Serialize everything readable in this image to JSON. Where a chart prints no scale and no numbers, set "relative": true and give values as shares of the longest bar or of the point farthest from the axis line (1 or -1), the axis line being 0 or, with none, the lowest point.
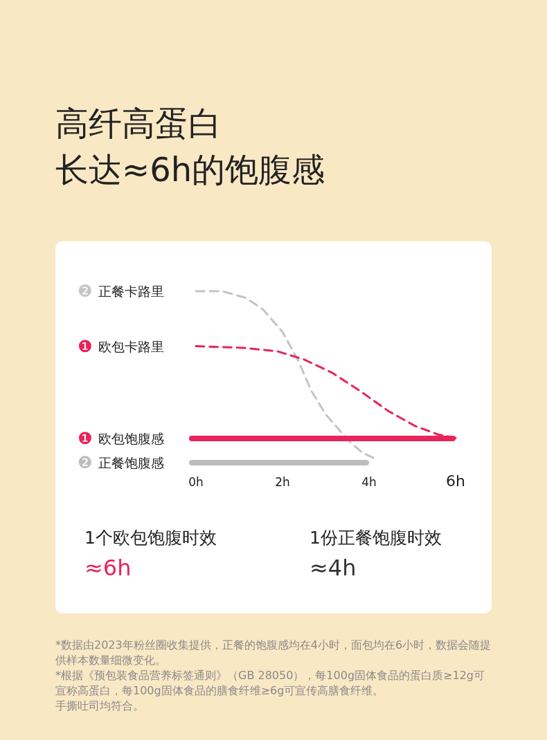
{
  "chart_data": [
    {
      "type": "line",
      "title": "高纤高蛋白",
      "subtitle": "长达≈6h的饱腹感",
      "relative": true,
      "line_style": "dashed",
      "tick_labels": false,
      "xlim": [
        0,
        6
      ],
      "series": [
        {
          "name": "❷ 正餐卡路里",
          "color": "#c4c4c4",
          "x": [
            0,
            0.6,
            1.15,
            1.55,
            2.0,
            2.35,
            2.67,
            3.0,
            3.5,
            3.85,
            4.1
          ],
          "values": [
            1,
            1,
            0.96,
            0.89,
            0.755,
            0.59,
            0.4,
            0.26,
            0.11,
            0.03,
            0
          ]
        },
        {
          "name": "❶ 欧包卡路里",
          "color": "#e8245a",
          "x": [
            0,
            1.07,
            1.87,
            2.5,
            3.15,
            3.8,
            4.45,
            5.07,
            5.6,
            6.0
          ],
          "values": [
            0.67,
            0.66,
            0.64,
            0.59,
            0.51,
            0.4,
            0.28,
            0.19,
            0.14,
            0.12
          ]
        }
      ]
    },
    {
      "type": "bar",
      "orientation": "horizontal",
      "categories": [
        "❶ 欧包饱腹感",
        "❷ 正餐饱腹感"
      ],
      "values": [
        6,
        4
      ],
      "colors": [
        "#e8245a",
        "#bdbdbd"
      ],
      "xlim": [
        0,
        6
      ],
      "xticks": [
        {
          "value": 0,
          "label": "0h"
        },
        {
          "value": 2,
          "label": "2h"
        },
        {
          "value": 4,
          "label": "4h"
        },
        {
          "value": 6,
          "label": "6h"
        }
      ],
      "annotations": [
        "1个欧包饱腹时效",
        "≈6h",
        "1份正餐饱腹时效",
        "≈4h",
        "*数据由2023年粉丝圈收集提供，正餐的饱腹感均在4小时，面包均在6小时，数据会随提供样本数量细微变化。",
        "*根据《预包装食品营养标签通则》（GB 28050），每100g固体食品的蛋白质≥12g可宣称高蛋白，每100g固体食品的膳食纤维≥6g可宣传高膳食纤维。",
        "手撕吐司均符合。"
      ]
    }
  ]
}
